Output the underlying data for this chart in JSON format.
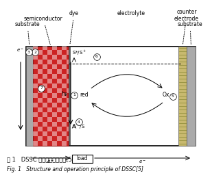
{
  "bg_color": "#f5f5f5",
  "title_zh": "图 1   DSSC 结构和运行示意图[5]",
  "title_en": "Fig. 1   Structure and operation principle of DSSC[5]",
  "labels": {
    "substrate_left": "substrate",
    "semiconductor": "semiconductor",
    "dye": "dye",
    "electrolyte": "electrolyte",
    "counter_electrode": "counter\nelectrode",
    "substrate_right": "substrate"
  }
}
